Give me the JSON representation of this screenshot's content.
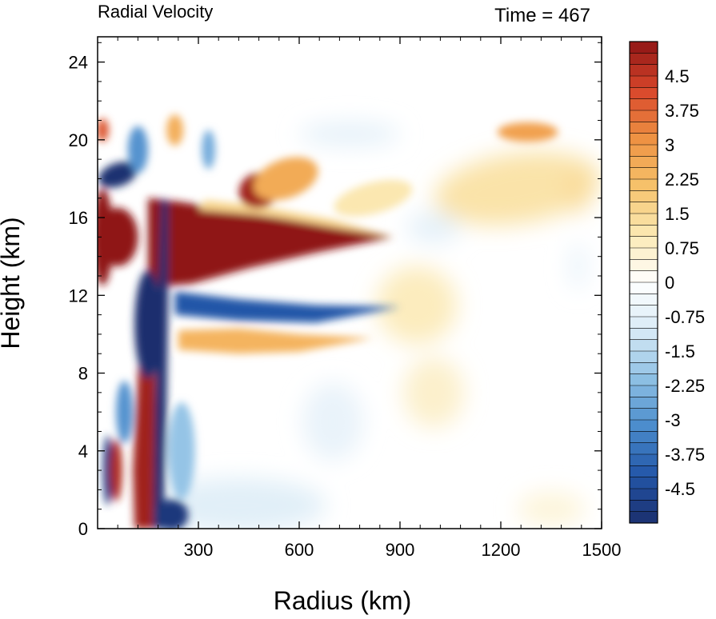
{
  "chart_data": {
    "type": "heatmap",
    "title_left": "Radial Velocity",
    "title_right": "Time = 467",
    "xlabel": "Radius (km)",
    "ylabel": "Height (km)",
    "xlim": [
      0,
      1500
    ],
    "ylim": [
      0,
      25.3
    ],
    "x_ticks": [
      "300",
      "600",
      "900",
      "1200",
      "1500"
    ],
    "y_ticks": [
      "0",
      "4",
      "8",
      "12",
      "16",
      "20",
      "24"
    ],
    "colorbar": {
      "range": [
        -5.25,
        5.25
      ],
      "step": 0.25,
      "labels": [
        "4.5",
        "3.75",
        "3",
        "2.25",
        "1.5",
        "0.75",
        "0",
        "-0.75",
        "-1.5",
        "-2.25",
        "-3",
        "-3.75",
        "-4.5"
      ],
      "colors": [
        "#1b2f6e",
        "#2356a8",
        "#4a8ccc",
        "#8ec0e4",
        "#d8eaf6",
        "#ffffff",
        "#fbe9b3",
        "#f6c26b",
        "#ee9142",
        "#d8462b",
        "#8f1515"
      ]
    },
    "features": [
      {
        "label": "upper-level outflow jet",
        "r0": 150,
        "r1": 900,
        "z": 14.8,
        "value": 5.5
      },
      {
        "label": "inflow layer",
        "r0": 200,
        "r1": 900,
        "z": 11.3,
        "value": -4.0
      },
      {
        "label": "eyewall updraft",
        "r": 180,
        "z0": 0,
        "z1": 17,
        "value": -5.5
      },
      {
        "label": "mid-level outflow",
        "r0": 250,
        "r1": 1000,
        "z": 9.7,
        "value": 2.3
      },
      {
        "label": "upper outflow band",
        "r0": 400,
        "r1": 1350,
        "z": 18,
        "value": 2.5
      }
    ]
  }
}
